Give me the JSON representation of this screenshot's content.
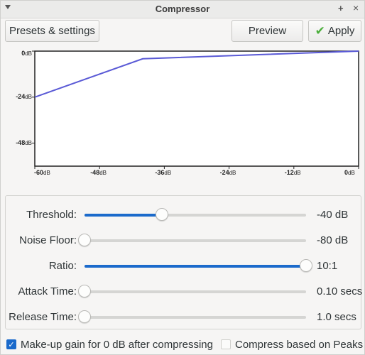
{
  "window": {
    "title": "Compressor"
  },
  "toolbar": {
    "presets_label": "Presets & settings",
    "preview_label": "Preview",
    "apply_label": "Apply"
  },
  "graph": {
    "unit": "dB",
    "y_ticks": [
      "0",
      "-24",
      "-48"
    ],
    "x_ticks": [
      "-60",
      "-48",
      "-36",
      "-24",
      "-12",
      "0"
    ],
    "curve_color": "#5a5ad6",
    "threshold_db": -40,
    "ratio": 10,
    "x_range": [
      -60,
      0
    ],
    "y_range": [
      -60,
      0
    ]
  },
  "controls": [
    {
      "label": "Threshold:",
      "value": "-40 dB",
      "fraction": 0.35
    },
    {
      "label": "Noise Floor:",
      "value": "-80 dB",
      "fraction": 0.0
    },
    {
      "label": "Ratio:",
      "value": "10:1",
      "fraction": 1.0
    },
    {
      "label": "Attack Time:",
      "value": "0.10 secs",
      "fraction": 0.0
    },
    {
      "label": "Release Time:",
      "value": "1.0 secs",
      "fraction": 0.0
    }
  ],
  "options": {
    "makeup_label": "Make-up gain for 0 dB after compressing",
    "makeup_checked": true,
    "peaks_label": "Compress based on Peaks",
    "peaks_checked": false
  },
  "colors": {
    "accent": "#1b6acb",
    "check": "#4caf3c"
  }
}
